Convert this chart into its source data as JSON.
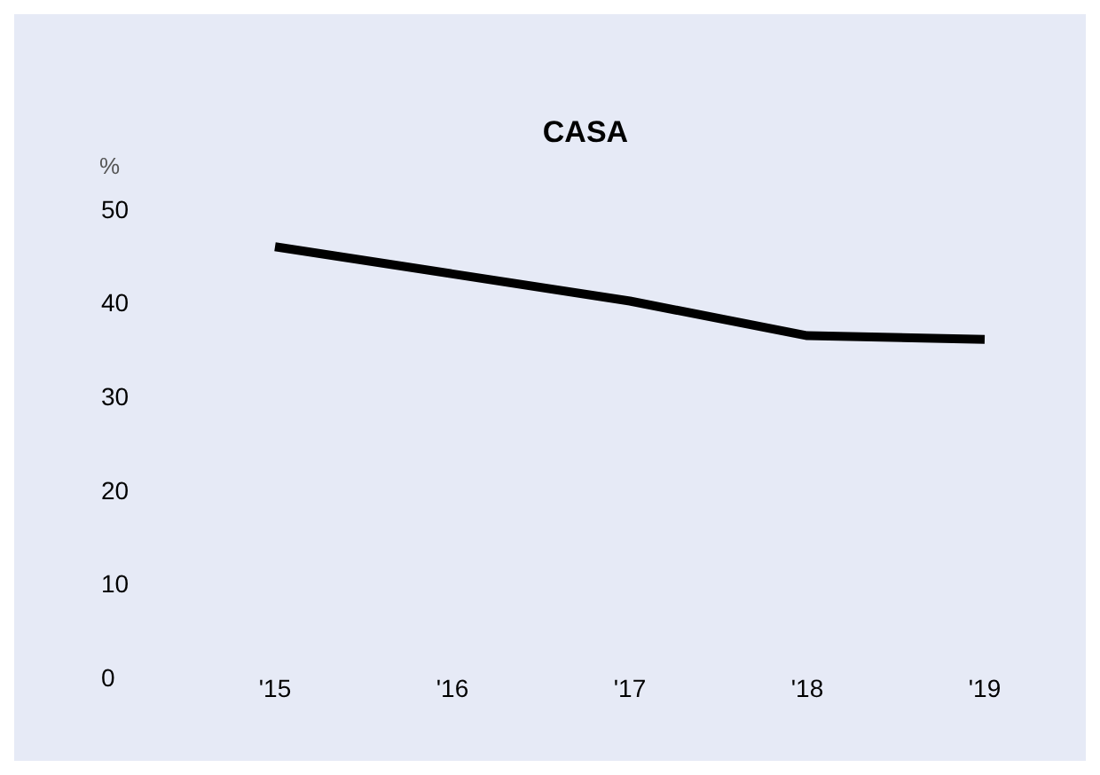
{
  "chart_data": {
    "type": "line",
    "title": "CASA",
    "ylabel": "%",
    "categories": [
      "'15",
      "'16",
      "'17",
      "'18",
      "'19"
    ],
    "series": [
      {
        "color": "#000000",
        "values": [
          46,
          43.1,
          40.2,
          36.5,
          36.1
        ]
      }
    ],
    "ylim": [
      0,
      50
    ],
    "yticks": [
      0,
      10,
      20,
      30,
      40,
      50
    ],
    "grid": false,
    "marker": "none",
    "line_style": "solid"
  }
}
